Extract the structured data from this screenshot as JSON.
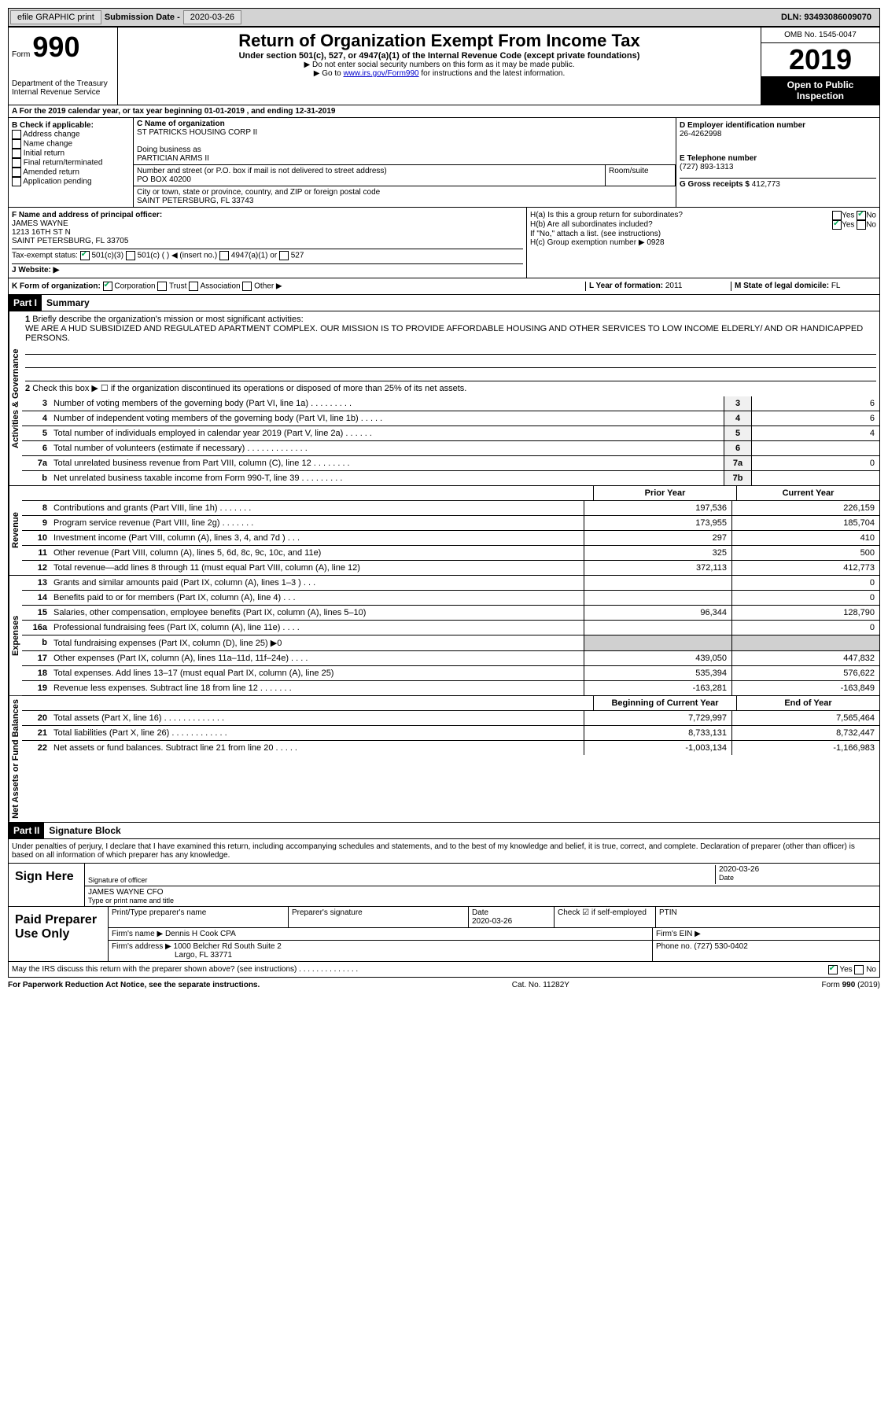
{
  "topbar": {
    "efile": "efile GRAPHIC print",
    "submission_label": "Submission Date - ",
    "submission_date": "2020-03-26",
    "dln": "DLN: 93493086009070"
  },
  "header": {
    "form_label": "Form",
    "form_num": "990",
    "dept": "Department of the Treasury\nInternal Revenue Service",
    "title": "Return of Organization Exempt From Income Tax",
    "subtitle": "Under section 501(c), 527, or 4947(a)(1) of the Internal Revenue Code (except private foundations)",
    "note1": "▶ Do not enter social security numbers on this form as it may be made public.",
    "note2_pre": "▶ Go to ",
    "note2_link": "www.irs.gov/Form990",
    "note2_post": " for instructions and the latest information.",
    "omb": "OMB No. 1545-0047",
    "year": "2019",
    "inspect": "Open to Public Inspection"
  },
  "section_a": "A For the 2019 calendar year, or tax year beginning 01-01-2019    , and ending 12-31-2019",
  "b": {
    "label": "B Check if applicable:",
    "items": [
      "Address change",
      "Name change",
      "Initial return",
      "Final return/terminated",
      "Amended return",
      "Application pending"
    ]
  },
  "c": {
    "name_label": "C Name of organization",
    "name": "ST PATRICKS HOUSING CORP II",
    "dba_label": "Doing business as",
    "dba": "PARTICIAN ARMS II",
    "addr_label": "Number and street (or P.O. box if mail is not delivered to street address)",
    "addr": "PO BOX 40200",
    "room_label": "Room/suite",
    "city_label": "City or town, state or province, country, and ZIP or foreign postal code",
    "city": "SAINT PETERSBURG, FL  33743"
  },
  "d": {
    "ein_label": "D Employer identification number",
    "ein": "26-4262998",
    "phone_label": "E Telephone number",
    "phone": "(727) 893-1313",
    "receipts_label": "G Gross receipts $ ",
    "receipts": "412,773"
  },
  "f": {
    "label": "F  Name and address of principal officer:",
    "name": "JAMES WAYNE",
    "addr1": "1213 16TH ST N",
    "addr2": "SAINT PETERSBURG, FL  33705"
  },
  "h": {
    "a_label": "H(a)  Is this a group return for subordinates?",
    "a_yes": "Yes",
    "a_no": "No",
    "b_label": "H(b)  Are all subordinates included?",
    "b_yes": "Yes",
    "b_no": "No",
    "b_note": "If \"No,\" attach a list. (see instructions)",
    "c_label": "H(c)  Group exemption number ▶",
    "c_val": "0928"
  },
  "i": {
    "label": "Tax-exempt status:",
    "opts": [
      "501(c)(3)",
      "501(c) (   ) ◀ (insert no.)",
      "4947(a)(1) or",
      "527"
    ]
  },
  "j": {
    "label": "J  Website: ▶"
  },
  "k": {
    "label": "K Form of organization:",
    "opts": [
      "Corporation",
      "Trust",
      "Association",
      "Other ▶"
    ],
    "l_label": "L Year of formation: ",
    "l_val": "2011",
    "m_label": "M State of legal domicile: ",
    "m_val": "FL"
  },
  "part1": {
    "header": "Part I",
    "title": "Summary",
    "governance_label": "Activities & Governance",
    "revenue_label": "Revenue",
    "expenses_label": "Expenses",
    "netassets_label": "Net Assets or Fund Balances",
    "line1_label": "Briefly describe the organization's mission or most significant activities:",
    "line1_text": "WE ARE A HUD SUBSIDIZED AND REGULATED APARTMENT COMPLEX. OUR MISSION IS TO PROVIDE AFFORDABLE HOUSING AND OTHER SERVICES TO LOW INCOME ELDERLY/ AND OR HANDICAPPED PERSONS.",
    "line2": "Check this box ▶ ☐  if the organization discontinued its operations or disposed of more than 25% of its net assets.",
    "lines_num": [
      {
        "n": "3",
        "d": "Number of voting members of the governing body (Part VI, line 1a)   .   .   .   .   .   .   .   .   .",
        "b": "3",
        "v": "6"
      },
      {
        "n": "4",
        "d": "Number of independent voting members of the governing body (Part VI, line 1b)   .   .   .   .   .",
        "b": "4",
        "v": "6"
      },
      {
        "n": "5",
        "d": "Total number of individuals employed in calendar year 2019 (Part V, line 2a)   .   .   .   .   .   .",
        "b": "5",
        "v": "4"
      },
      {
        "n": "6",
        "d": "Total number of volunteers (estimate if necessary)    .   .   .   .   .   .   .   .   .   .   .   .   .",
        "b": "6",
        "v": ""
      },
      {
        "n": "7a",
        "d": "Total unrelated business revenue from Part VIII, column (C), line 12   .   .   .   .   .   .   .   .",
        "b": "7a",
        "v": "0"
      },
      {
        "n": "b",
        "d": "Net unrelated business taxable income from Form 990-T, line 39   .   .   .   .   .   .   .   .   .",
        "b": "7b",
        "v": ""
      }
    ],
    "prior_header": "Prior Year",
    "curr_header": "Current Year",
    "revenue_lines": [
      {
        "n": "8",
        "d": "Contributions and grants (Part VIII, line 1h)   .   .   .   .   .   .   .",
        "p": "197,536",
        "c": "226,159"
      },
      {
        "n": "9",
        "d": "Program service revenue (Part VIII, line 2g)   .   .   .   .   .   .   .",
        "p": "173,955",
        "c": "185,704"
      },
      {
        "n": "10",
        "d": "Investment income (Part VIII, column (A), lines 3, 4, and 7d )   .   .   .",
        "p": "297",
        "c": "410"
      },
      {
        "n": "11",
        "d": "Other revenue (Part VIII, column (A), lines 5, 6d, 8c, 9c, 10c, and 11e)",
        "p": "325",
        "c": "500"
      },
      {
        "n": "12",
        "d": "Total revenue—add lines 8 through 11 (must equal Part VIII, column (A), line 12)",
        "p": "372,113",
        "c": "412,773"
      }
    ],
    "expense_lines": [
      {
        "n": "13",
        "d": "Grants and similar amounts paid (Part IX, column (A), lines 1–3 )   .   .   .",
        "p": "",
        "c": "0"
      },
      {
        "n": "14",
        "d": "Benefits paid to or for members (Part IX, column (A), line 4)   .   .   .",
        "p": "",
        "c": "0"
      },
      {
        "n": "15",
        "d": "Salaries, other compensation, employee benefits (Part IX, column (A), lines 5–10)",
        "p": "96,344",
        "c": "128,790"
      },
      {
        "n": "16a",
        "d": "Professional fundraising fees (Part IX, column (A), line 11e)   .   .   .   .",
        "p": "",
        "c": "0"
      },
      {
        "n": "b",
        "d": "Total fundraising expenses (Part IX, column (D), line 25) ▶0",
        "p": "shaded",
        "c": "shaded"
      },
      {
        "n": "17",
        "d": "Other expenses (Part IX, column (A), lines 11a–11d, 11f–24e)   .   .   .   .",
        "p": "439,050",
        "c": "447,832"
      },
      {
        "n": "18",
        "d": "Total expenses. Add lines 13–17 (must equal Part IX, column (A), line 25)",
        "p": "535,394",
        "c": "576,622"
      },
      {
        "n": "19",
        "d": "Revenue less expenses. Subtract line 18 from line 12   .   .   .   .   .   .   .",
        "p": "-163,281",
        "c": "-163,849"
      }
    ],
    "begin_header": "Beginning of Current Year",
    "end_header": "End of Year",
    "net_lines": [
      {
        "n": "20",
        "d": "Total assets (Part X, line 16)   .   .   .   .   .   .   .   .   .   .   .   .   .",
        "p": "7,729,997",
        "c": "7,565,464"
      },
      {
        "n": "21",
        "d": "Total liabilities (Part X, line 26)   .   .   .   .   .   .   .   .   .   .   .   .",
        "p": "8,733,131",
        "c": "8,732,447"
      },
      {
        "n": "22",
        "d": "Net assets or fund balances. Subtract line 21 from line 20   .   .   .   .   .",
        "p": "-1,003,134",
        "c": "-1,166,983"
      }
    ]
  },
  "part2": {
    "header": "Part II",
    "title": "Signature Block",
    "declaration": "Under penalties of perjury, I declare that I have examined this return, including accompanying schedules and statements, and to the best of my knowledge and belief, it is true, correct, and complete. Declaration of preparer (other than officer) is based on all information of which preparer has any knowledge.",
    "sign_here": "Sign Here",
    "sig_label": "Signature of officer",
    "sig_date": "2020-03-26",
    "date_label": "Date",
    "officer_name": "JAMES WAYNE  CFO",
    "officer_label": "Type or print name and title",
    "paid_prep": "Paid Preparer Use Only",
    "prep_name_label": "Print/Type preparer's name",
    "prep_sig_label": "Preparer's signature",
    "prep_date_label": "Date",
    "prep_date": "2020-03-26",
    "check_if": "Check ☑ if self-employed",
    "ptin_label": "PTIN",
    "firm_name_label": "Firm's name    ▶",
    "firm_name": "Dennis H Cook CPA",
    "firm_ein_label": "Firm's EIN ▶",
    "firm_addr_label": "Firm's address ▶",
    "firm_addr1": "1000 Belcher Rd South Suite 2",
    "firm_addr2": "Largo, FL  33771",
    "firm_phone_label": "Phone no. ",
    "firm_phone": "(727) 530-0402",
    "discuss": "May the IRS discuss this return with the preparer shown above? (see instructions)   .   .   .   .   .   .   .   .   .   .   .   .   .   .",
    "discuss_yes": "Yes",
    "discuss_no": "No"
  },
  "footer": {
    "left": "For Paperwork Reduction Act Notice, see the separate instructions.",
    "center": "Cat. No. 11282Y",
    "right": "Form 990 (2019)"
  }
}
